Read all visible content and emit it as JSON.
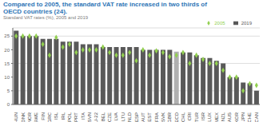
{
  "chart_data": {
    "type": "bar",
    "title": "Compared to 2005, the standard VAT rate increased in two thirds of\nOECD countries (24).",
    "subtitle": "Standard VAT rates (%), 2005 and 2019",
    "categories": [
      "HUN",
      "DNK",
      "NOR",
      "SWE",
      "FIN",
      "GRC",
      "ISL",
      "IRL",
      "POL",
      "PRT",
      "ITA",
      "SVN",
      "EU-22",
      "BEL",
      "CZE",
      "LVA",
      "LTU",
      "NLD",
      "ESP",
      "AUT",
      "EST",
      "FRA",
      "SVK",
      "GBR",
      "OECD",
      "CHL",
      "CRI",
      "TUR",
      "ISR",
      "LUX",
      "MEX",
      "NZL",
      "AUS",
      "KOR",
      "JPN",
      "CHE",
      "CAN"
    ],
    "series": [
      {
        "name": "2019",
        "type": "bar",
        "color": "#595959",
        "colors": [
          "#595959",
          "#595959",
          "#595959",
          "#595959",
          "#595959",
          "#595959",
          "#595959",
          "#595959",
          "#595959",
          "#595959",
          "#595959",
          "#595959",
          "#595959",
          "#595959",
          "#595959",
          "#595959",
          "#595959",
          "#595959",
          "#595959",
          "#595959",
          "#595959",
          "#595959",
          "#595959",
          "#595959",
          "#b0b0b0",
          "#595959",
          "#595959",
          "#595959",
          "#595959",
          "#595959",
          "#595959",
          "#595959",
          "#595959",
          "#595959",
          "#595959",
          "#595959",
          "#595959"
        ],
        "values": [
          27,
          25,
          25,
          25,
          24,
          24,
          24,
          23,
          23,
          23,
          22,
          22,
          22,
          21,
          21,
          21,
          21,
          21,
          21,
          20,
          20,
          20,
          20,
          20,
          19.3,
          19,
          19,
          18,
          17,
          17,
          16,
          15,
          10,
          10,
          8,
          7.7,
          5
        ]
      },
      {
        "name": "2005",
        "type": "scatter",
        "color": "#92d050",
        "marker": "diamond",
        "values": [
          25,
          25,
          25,
          25,
          22,
          18,
          24.5,
          21,
          22,
          19,
          20,
          20,
          20,
          21,
          19,
          18,
          18,
          19,
          16,
          20,
          18,
          19.6,
          19,
          17.5,
          18,
          19,
          15,
          18,
          16.5,
          15,
          15,
          12.5,
          10,
          10,
          5,
          7.6,
          7
        ]
      }
    ],
    "ylim": [
      0,
      28
    ],
    "yticks": [
      0,
      5,
      10,
      15,
      20,
      25
    ],
    "grid": true,
    "legend": "upper right"
  }
}
